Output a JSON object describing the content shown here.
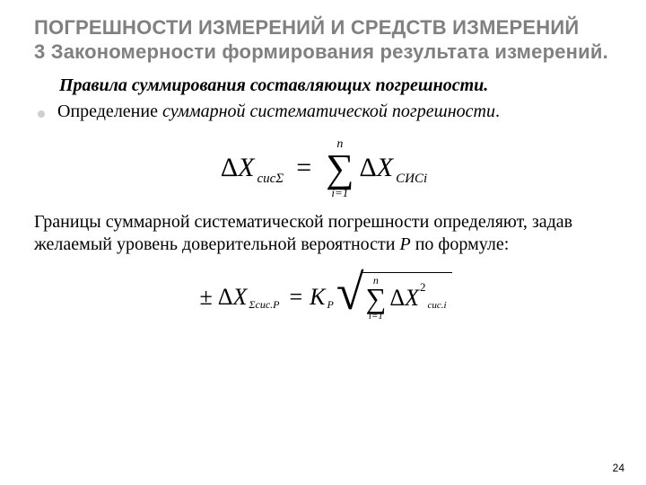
{
  "colors": {
    "title": "#808080",
    "bullet": "#cfcfcf",
    "text": "#000000",
    "background": "#ffffff"
  },
  "typography": {
    "title_family": "Arial",
    "title_weight": 700,
    "title_size_pt": 17,
    "body_family": "Times New Roman",
    "body_size_pt": 15,
    "subhead_italic_bold_size_pt": 15
  },
  "title": "ПОГРЕШНОСТИ ИЗМЕРЕНИЙ И СРЕДСТВ ИЗМЕРЕНИЙ\n3 Закономерности формирования результата измерений.",
  "subhead": "Правила суммирования составляющих погрешности.",
  "bullet": {
    "prefix": "Определение ",
    "italic": "суммарной систематической погрешности",
    "suffix": "."
  },
  "formula1": {
    "lhs_delta": "Δ",
    "lhs_var": "X",
    "lhs_sub": "сисΣ",
    "eq": "=",
    "sum_top": "n",
    "sum_symbol": "∑",
    "sum_bottom": "i=1",
    "rhs_delta": "Δ",
    "rhs_var": "X",
    "rhs_sub": "СИСi"
  },
  "body": {
    "pre": "Границы суммарной систематической погрешности определяют, задав желаемый уровень доверительной вероятности ",
    "P": "Р",
    "post": " по формуле:"
  },
  "formula2": {
    "pm": "±",
    "lhs_delta": "Δ",
    "lhs_var": "X",
    "lhs_sub": "Σсис.P",
    "eq": "=",
    "K": "К",
    "K_sub": "P",
    "sqrt": "√",
    "sum_top": "n",
    "sum_symbol": "∑",
    "sum_bottom": "i=1",
    "term_delta": "Δ",
    "term_var": "X",
    "term_sup": "2",
    "term_sub": "сис.i"
  },
  "pagenum": "24"
}
